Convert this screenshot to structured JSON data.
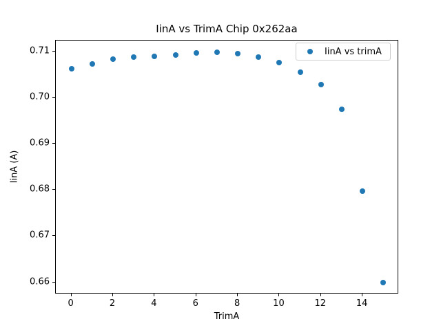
{
  "chart_data": {
    "type": "scatter",
    "title": "IinA vs TrimA Chip 0x262aa",
    "xlabel": "TrimA",
    "ylabel": "IinA (A)",
    "series": [
      {
        "name": "IinA vs trimA",
        "x": [
          0,
          1,
          2,
          3,
          4,
          5,
          6,
          7,
          8,
          9,
          10,
          11,
          12,
          13,
          14,
          15
        ],
        "y": [
          0.7063,
          0.7074,
          0.7084,
          0.7088,
          0.709,
          0.7093,
          0.7097,
          0.7099,
          0.7096,
          0.7088,
          0.7076,
          0.7055,
          0.7029,
          0.6975,
          0.6797,
          0.6599
        ]
      }
    ],
    "xlim": [
      -0.75,
      15.75
    ],
    "ylim": [
      0.6574,
      0.7124
    ],
    "xticks": [
      0,
      2,
      4,
      6,
      8,
      10,
      12,
      14
    ],
    "yticks": [
      0.66,
      0.67,
      0.68,
      0.69,
      0.7,
      0.71
    ],
    "grid": false,
    "legend_position": "upper right"
  },
  "legend": {
    "label": "IinA vs trimA"
  },
  "colors": {
    "marker": "#1f77b4",
    "axis": "#000000",
    "legend_border": "#cccccc"
  }
}
